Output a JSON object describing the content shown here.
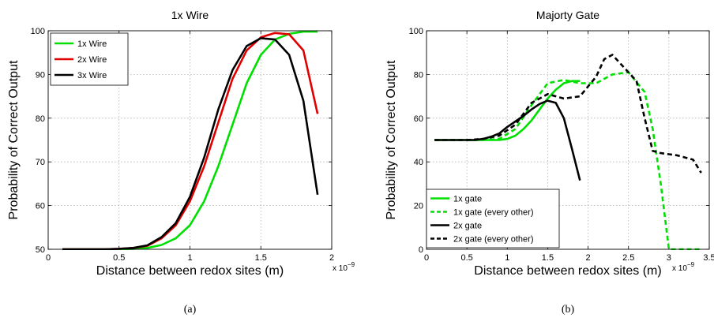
{
  "chart_data": [
    {
      "type": "line",
      "title": "1x Wire",
      "xlabel": "Distance between redox sites (m)",
      "xscale": "x 10^-9",
      "ylabel": "Probability of Correct Output",
      "xlim": [
        0,
        2
      ],
      "ylim": [
        50,
        100
      ],
      "xticks": [
        0,
        0.5,
        1,
        1.5,
        2
      ],
      "xticklabels": [
        "0",
        "0.5",
        "1",
        "1.5",
        "2"
      ],
      "yticks": [
        50,
        60,
        70,
        80,
        90,
        100
      ],
      "yticklabels": [
        "50",
        "60",
        "70",
        "80",
        "90",
        "100"
      ],
      "grid": true,
      "legend": "top-left",
      "panel_label": "(a)",
      "series": [
        {
          "name": "1x Wire",
          "color": "#00e000",
          "dash": "solid",
          "x": [
            0.1,
            0.2,
            0.3,
            0.4,
            0.5,
            0.6,
            0.7,
            0.8,
            0.9,
            1.0,
            1.1,
            1.2,
            1.3,
            1.4,
            1.5,
            1.6,
            1.7,
            1.8,
            1.9
          ],
          "y": [
            50,
            50,
            50,
            50,
            50,
            50.1,
            50.3,
            51,
            52.5,
            55.5,
            61,
            69,
            78.5,
            88,
            94.5,
            98,
            99.3,
            99.8,
            99.8
          ]
        },
        {
          "name": "2x Wire",
          "color": "#e00000",
          "dash": "solid",
          "x": [
            0.1,
            0.2,
            0.3,
            0.4,
            0.5,
            0.6,
            0.7,
            0.8,
            0.9,
            1.0,
            1.1,
            1.2,
            1.3,
            1.4,
            1.5,
            1.6,
            1.7,
            1.8,
            1.9
          ],
          "y": [
            50,
            50,
            50,
            50,
            50.1,
            50.3,
            50.8,
            52.5,
            55.5,
            61,
            69,
            79,
            89,
            95.5,
            98.5,
            99.5,
            99.2,
            95.5,
            81
          ]
        },
        {
          "name": "3x Wire",
          "color": "#000000",
          "dash": "solid",
          "x": [
            0.1,
            0.2,
            0.3,
            0.4,
            0.5,
            0.6,
            0.7,
            0.8,
            0.9,
            1.0,
            1.1,
            1.2,
            1.3,
            1.4,
            1.5,
            1.6,
            1.7,
            1.8,
            1.9
          ],
          "y": [
            50,
            50,
            50,
            50,
            50.1,
            50.3,
            50.9,
            52.8,
            56,
            62,
            71,
            82,
            91,
            96.5,
            98.3,
            98,
            94.5,
            84,
            62.5
          ]
        }
      ]
    },
    {
      "type": "line",
      "title": "Majorty Gate",
      "xlabel": "Distance between redox sites (m)",
      "xscale": "x 10^-9",
      "ylabel": "Probability of Correct Output",
      "xlim": [
        0,
        3.5
      ],
      "ylim": [
        0,
        100
      ],
      "xticks": [
        0,
        0.5,
        1,
        1.5,
        2,
        2.5,
        3,
        3.5
      ],
      "xticklabels": [
        "0",
        "0.5",
        "1",
        "1.5",
        "2",
        "2.5",
        "3",
        "3.5"
      ],
      "yticks": [
        0,
        20,
        40,
        60,
        80,
        100
      ],
      "yticklabels": [
        "0",
        "20",
        "40",
        "60",
        "80",
        "100"
      ],
      "grid": true,
      "legend": "bottom-left",
      "panel_label": "(b)",
      "series": [
        {
          "name": "1x gate",
          "color": "#00e000",
          "dash": "solid",
          "x": [
            0.1,
            0.2,
            0.3,
            0.4,
            0.5,
            0.6,
            0.7,
            0.8,
            0.9,
            1.0,
            1.1,
            1.2,
            1.3,
            1.4,
            1.5,
            1.6,
            1.7,
            1.8,
            1.9
          ],
          "y": [
            50,
            50,
            50,
            50,
            50,
            50,
            50,
            50,
            50,
            50.5,
            52,
            55,
            59,
            64,
            69,
            73,
            76,
            77,
            77
          ]
        },
        {
          "name": "1x gate (every other)",
          "color": "#00e000",
          "dash": "dashed",
          "x": [
            0.1,
            0.3,
            0.5,
            0.7,
            0.9,
            1.1,
            1.3,
            1.5,
            1.7,
            1.9,
            2.1,
            2.3,
            2.5,
            2.7,
            2.8,
            2.9,
            3.0,
            3.1,
            3.3,
            3.4
          ],
          "y": [
            50,
            50,
            50,
            50,
            50.5,
            55,
            66,
            76,
            77.5,
            76,
            76,
            80,
            81,
            72,
            55,
            30,
            0,
            0,
            0,
            0
          ]
        },
        {
          "name": "2x gate",
          "color": "#000000",
          "dash": "solid",
          "x": [
            0.1,
            0.2,
            0.3,
            0.4,
            0.5,
            0.6,
            0.7,
            0.8,
            0.9,
            1.0,
            1.1,
            1.2,
            1.3,
            1.4,
            1.5,
            1.6,
            1.7,
            1.8,
            1.9
          ],
          "y": [
            50,
            50,
            50,
            50,
            50,
            50,
            50.5,
            51.5,
            53,
            56,
            58.5,
            61,
            64,
            66.5,
            68,
            67,
            60,
            46,
            31.5
          ]
        },
        {
          "name": "2x gate (every other)",
          "color": "#000000",
          "dash": "dashed",
          "x": [
            0.1,
            0.3,
            0.5,
            0.7,
            0.9,
            1.1,
            1.3,
            1.5,
            1.7,
            1.9,
            2.1,
            2.2,
            2.3,
            2.4,
            2.5,
            2.6,
            2.7,
            2.8,
            2.9,
            3.1,
            3.3,
            3.4
          ],
          "y": [
            50,
            50,
            50,
            50.5,
            52,
            57,
            67,
            71,
            69,
            70,
            79,
            87,
            89,
            85,
            81,
            77,
            60,
            45,
            44,
            43,
            41,
            35
          ]
        }
      ]
    }
  ]
}
